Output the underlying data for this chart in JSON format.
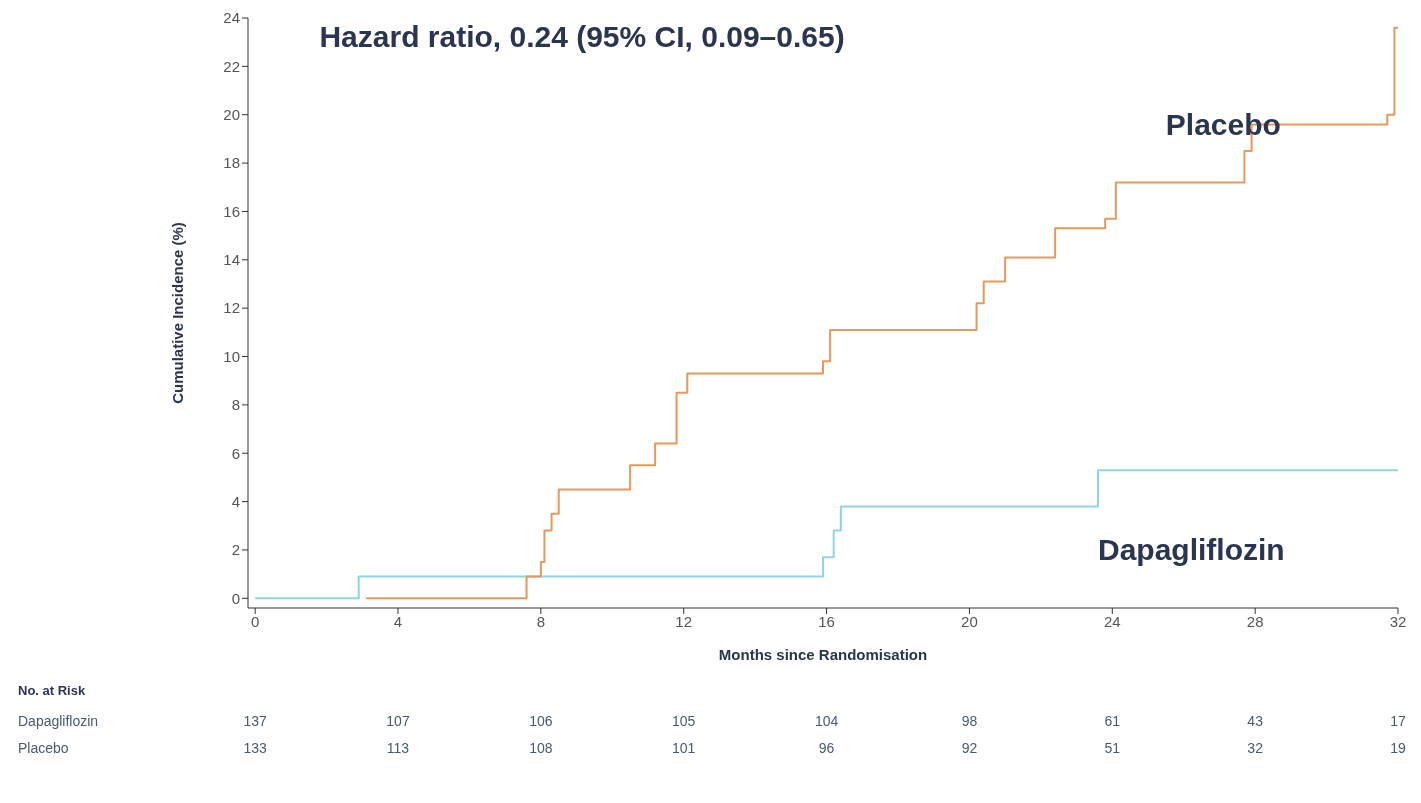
{
  "chart_data": {
    "type": "step",
    "xlabel": "Months since Randomisation",
    "ylabel": "Cumulative Incidence (%)",
    "xlim": [
      -0.2,
      32
    ],
    "xticks": [
      0,
      4,
      8,
      12,
      16,
      20,
      24,
      28,
      32
    ],
    "ylim": [
      -0.4,
      24
    ],
    "yticks": [
      0,
      2,
      4,
      6,
      8,
      10,
      12,
      14,
      16,
      18,
      20,
      22,
      24
    ],
    "marker": "none",
    "line_style": "solid",
    "series": [
      {
        "name": "Dapagliflozin",
        "color": "#8fd6de",
        "x": [
          0,
          2.9,
          15.9,
          16.2,
          16.4,
          23.6,
          32
        ],
        "values": [
          0,
          0.9,
          1.7,
          2.8,
          3.8,
          5.3,
          5.3
        ]
      },
      {
        "name": "Placebo",
        "color": "#e39a5c",
        "x": [
          3.1,
          7.6,
          8.0,
          8.1,
          8.3,
          8.5,
          10.5,
          11.2,
          11.8,
          12.1,
          15.9,
          16.1,
          20.2,
          20.4,
          21.0,
          22.4,
          23.8,
          24.1,
          27.7,
          27.9,
          31.7,
          31.9,
          32
        ],
        "values": [
          0,
          0.9,
          1.5,
          2.8,
          3.5,
          4.5,
          5.5,
          6.4,
          8.5,
          9.3,
          9.8,
          11.1,
          12.2,
          13.1,
          14.1,
          15.3,
          15.7,
          17.2,
          18.5,
          19.6,
          20.0,
          23.6,
          23.6
        ]
      }
    ],
    "annotations": [
      "Hazard ratio, 0.24 (95% CI, 0.09–0.65)",
      "No. at Risk",
      "137 107 106 105 104 98 61 43 17",
      "133 113 108 101 96 92 51 32 19"
    ]
  }
}
